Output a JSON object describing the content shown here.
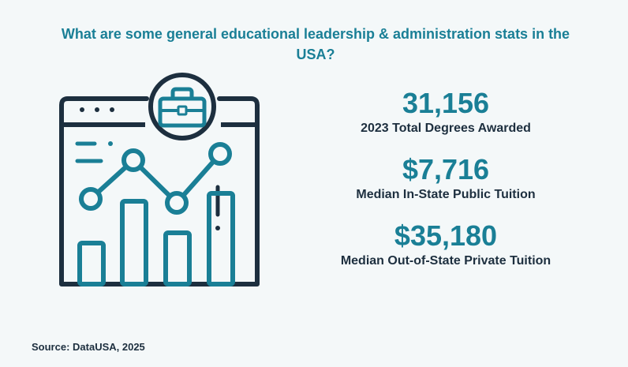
{
  "title": "What are some general educational leadership & administration stats in the USA?",
  "illustration": {
    "icon": "browser-chart-briefcase-icon",
    "colors": {
      "dark": "#1d2f3f",
      "accent": "#1a7f96"
    }
  },
  "stats": [
    {
      "value": "31,156",
      "label": "2023 Total Degrees Awarded"
    },
    {
      "value": "$7,716",
      "label": "Median In-State Public Tuition"
    },
    {
      "value": "$35,180",
      "label": "Median Out-of-State Private Tuition"
    }
  ],
  "source": "Source:  DataUSA, 2025"
}
